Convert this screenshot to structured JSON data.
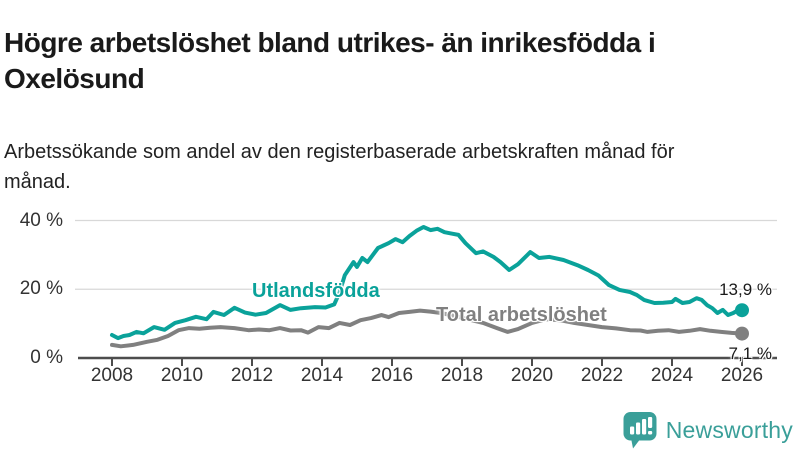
{
  "header": {
    "title": "Högre arbetslöshet bland utrikes- än inrikesfödda i Oxelösund",
    "subtitle": "Arbetssökande som andel av den registerbaserade arbetskraften månad för månad."
  },
  "colors": {
    "series_teal": "#0aa29a",
    "series_gray": "#808080",
    "grid": "#d8d8d8",
    "axis": "#4d4d4d",
    "tick_text": "#333333",
    "logo_teal": "#3a9f99"
  },
  "chart_data": {
    "type": "line",
    "unit": "%",
    "xlim": [
      2007.5,
      2026.6
    ],
    "ylim": [
      0,
      42
    ],
    "grid": "horizontal",
    "x_ticks": [
      2008,
      2010,
      2012,
      2014,
      2016,
      2018,
      2020,
      2022,
      2024,
      2026
    ],
    "y_ticks": [
      {
        "value": 0,
        "label": "0 %"
      },
      {
        "value": 20,
        "label": "20 %"
      },
      {
        "value": 40,
        "label": "40 %"
      }
    ],
    "series": [
      {
        "name": "Utlandsfödda",
        "color": "#0aa29a",
        "end_label": "13,9 %",
        "end_value": 13.9,
        "points": [
          [
            2008.0,
            6.7
          ],
          [
            2008.17,
            5.8
          ],
          [
            2008.33,
            6.4
          ],
          [
            2008.5,
            6.7
          ],
          [
            2008.7,
            7.6
          ],
          [
            2008.9,
            7.2
          ],
          [
            2009.2,
            9.0
          ],
          [
            2009.5,
            8.2
          ],
          [
            2009.8,
            10.2
          ],
          [
            2010.1,
            11.0
          ],
          [
            2010.4,
            12.0
          ],
          [
            2010.7,
            11.3
          ],
          [
            2010.9,
            13.4
          ],
          [
            2011.2,
            12.5
          ],
          [
            2011.5,
            14.6
          ],
          [
            2011.8,
            13.2
          ],
          [
            2012.1,
            12.6
          ],
          [
            2012.4,
            13.1
          ],
          [
            2012.8,
            15.4
          ],
          [
            2013.1,
            14.0
          ],
          [
            2013.4,
            14.5
          ],
          [
            2013.8,
            14.8
          ],
          [
            2014.1,
            14.7
          ],
          [
            2014.35,
            15.6
          ],
          [
            2014.5,
            19.0
          ],
          [
            2014.65,
            24.1
          ],
          [
            2014.9,
            27.9
          ],
          [
            2015.0,
            26.5
          ],
          [
            2015.15,
            29.1
          ],
          [
            2015.3,
            27.9
          ],
          [
            2015.6,
            32.0
          ],
          [
            2015.9,
            33.4
          ],
          [
            2016.1,
            34.6
          ],
          [
            2016.3,
            33.7
          ],
          [
            2016.5,
            35.5
          ],
          [
            2016.7,
            37.0
          ],
          [
            2016.9,
            38.1
          ],
          [
            2017.1,
            37.2
          ],
          [
            2017.3,
            37.6
          ],
          [
            2017.5,
            36.6
          ],
          [
            2017.7,
            36.2
          ],
          [
            2017.9,
            35.8
          ],
          [
            2018.1,
            33.4
          ],
          [
            2018.4,
            30.5
          ],
          [
            2018.6,
            31.0
          ],
          [
            2018.9,
            29.4
          ],
          [
            2019.1,
            27.9
          ],
          [
            2019.35,
            25.6
          ],
          [
            2019.6,
            27.3
          ],
          [
            2019.95,
            30.8
          ],
          [
            2020.2,
            29.1
          ],
          [
            2020.5,
            29.4
          ],
          [
            2020.9,
            28.5
          ],
          [
            2021.3,
            27.0
          ],
          [
            2021.6,
            25.6
          ],
          [
            2021.9,
            24.0
          ],
          [
            2022.2,
            21.2
          ],
          [
            2022.5,
            19.8
          ],
          [
            2022.8,
            19.2
          ],
          [
            2023.0,
            18.3
          ],
          [
            2023.2,
            16.9
          ],
          [
            2023.5,
            16.0
          ],
          [
            2023.75,
            16.1
          ],
          [
            2024.0,
            16.3
          ],
          [
            2024.1,
            17.2
          ],
          [
            2024.3,
            16.0
          ],
          [
            2024.5,
            16.3
          ],
          [
            2024.7,
            17.4
          ],
          [
            2024.85,
            16.9
          ],
          [
            2025.0,
            15.4
          ],
          [
            2025.15,
            14.5
          ],
          [
            2025.3,
            13.1
          ],
          [
            2025.45,
            14.0
          ],
          [
            2025.6,
            12.5
          ],
          [
            2025.75,
            13.1
          ],
          [
            2025.9,
            14.0
          ],
          [
            2026.0,
            13.9
          ]
        ]
      },
      {
        "name": "Total arbetslöshet",
        "color": "#808080",
        "end_label": "7,1 %",
        "end_value": 7.1,
        "points": [
          [
            2008.0,
            3.8
          ],
          [
            2008.25,
            3.4
          ],
          [
            2008.6,
            3.8
          ],
          [
            2009.0,
            4.7
          ],
          [
            2009.3,
            5.3
          ],
          [
            2009.6,
            6.4
          ],
          [
            2009.9,
            8.1
          ],
          [
            2010.2,
            8.7
          ],
          [
            2010.5,
            8.5
          ],
          [
            2010.8,
            8.8
          ],
          [
            2011.1,
            9.0
          ],
          [
            2011.5,
            8.7
          ],
          [
            2011.9,
            8.1
          ],
          [
            2012.2,
            8.3
          ],
          [
            2012.5,
            8.1
          ],
          [
            2012.8,
            8.7
          ],
          [
            2013.1,
            8.0
          ],
          [
            2013.4,
            8.1
          ],
          [
            2013.6,
            7.4
          ],
          [
            2013.9,
            9.0
          ],
          [
            2014.2,
            8.7
          ],
          [
            2014.5,
            10.2
          ],
          [
            2014.8,
            9.6
          ],
          [
            2015.1,
            11.0
          ],
          [
            2015.4,
            11.6
          ],
          [
            2015.7,
            12.5
          ],
          [
            2015.9,
            11.9
          ],
          [
            2016.2,
            13.1
          ],
          [
            2016.5,
            13.4
          ],
          [
            2016.8,
            13.8
          ],
          [
            2017.1,
            13.5
          ],
          [
            2017.4,
            13.1
          ],
          [
            2017.8,
            12.2
          ],
          [
            2018.2,
            11.2
          ],
          [
            2018.6,
            10.2
          ],
          [
            2019.0,
            8.7
          ],
          [
            2019.3,
            7.6
          ],
          [
            2019.6,
            8.4
          ],
          [
            2020.0,
            10.2
          ],
          [
            2020.4,
            11.3
          ],
          [
            2020.8,
            11.0
          ],
          [
            2021.2,
            10.2
          ],
          [
            2021.6,
            9.6
          ],
          [
            2022.0,
            9.0
          ],
          [
            2022.4,
            8.6
          ],
          [
            2022.8,
            8.1
          ],
          [
            2023.1,
            8.0
          ],
          [
            2023.3,
            7.6
          ],
          [
            2023.6,
            7.9
          ],
          [
            2023.9,
            8.1
          ],
          [
            2024.2,
            7.6
          ],
          [
            2024.5,
            7.9
          ],
          [
            2024.8,
            8.4
          ],
          [
            2025.1,
            7.9
          ],
          [
            2025.4,
            7.6
          ],
          [
            2025.7,
            7.3
          ],
          [
            2026.0,
            7.1
          ]
        ]
      }
    ]
  },
  "logo": {
    "brand": "Newsworthy"
  }
}
